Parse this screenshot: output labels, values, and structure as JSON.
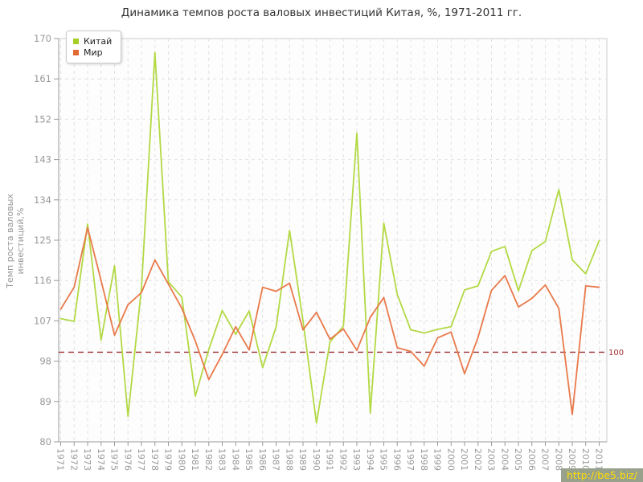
{
  "chart_data": {
    "type": "line",
    "title": "Динамика темпов роста валовых инвестиций Китая, %, 1971-2011 гг.",
    "ylabel": "Темп роста валовых инвестиций,%",
    "xlabel": "",
    "grid": true,
    "legend_position": "top-left",
    "ylim": [
      80,
      170
    ],
    "yticks": [
      80,
      89,
      98,
      107,
      116,
      125,
      134,
      143,
      152,
      161,
      170
    ],
    "x": [
      1971,
      1972,
      1973,
      1974,
      1975,
      1976,
      1977,
      1978,
      1979,
      1980,
      1981,
      1982,
      1983,
      1984,
      1985,
      1986,
      1987,
      1988,
      1989,
      1990,
      1991,
      1992,
      1993,
      1994,
      1995,
      1996,
      1997,
      1998,
      1999,
      2000,
      2001,
      2002,
      2003,
      2004,
      2005,
      2006,
      2007,
      2008,
      2009,
      2010,
      2011
    ],
    "series": [
      {
        "name": "Китай",
        "color": "#b3d944",
        "legend_color": "#a6ce27",
        "values": [
          107.5,
          106.9,
          128.6,
          102.7,
          119.3,
          85.7,
          114.3,
          166.9,
          115.7,
          112.3,
          90.2,
          100.6,
          109.3,
          104.0,
          109.2,
          96.6,
          105.6,
          127.2,
          107.0,
          84.2,
          102.3,
          105.8,
          148.9,
          86.4,
          128.8,
          112.9,
          105.0,
          104.3,
          105.1,
          105.7,
          113.9,
          114.8,
          122.5,
          123.6,
          113.7,
          122.7,
          124.7,
          136.3,
          120.6,
          117.5,
          124.9
        ]
      },
      {
        "name": "Мир",
        "color": "#e9794a",
        "legend_color": "#e26b34",
        "values": [
          109.6,
          114.5,
          127.8,
          116.0,
          103.8,
          110.6,
          113.3,
          120.6,
          115.2,
          109.8,
          102.5,
          93.9,
          99.5,
          105.7,
          100.5,
          114.5,
          113.6,
          115.4,
          105.0,
          108.9,
          102.9,
          105.2,
          100.4,
          107.8,
          112.2,
          101.0,
          100.2,
          96.9,
          103.2,
          104.5,
          95.2,
          103.3,
          113.8,
          117.1,
          110.1,
          112.0,
          115.0,
          109.8,
          86.1,
          114.8,
          114.5
        ]
      }
    ],
    "reference_line": {
      "value": 100,
      "label": "100",
      "color": "#9e3132"
    },
    "axis_colors": {
      "grid": "#e2e2e2",
      "axis": "#999999",
      "border": "#cccccc",
      "tick_text": "#999999"
    }
  },
  "watermark": {
    "text": "http://be5.biz/",
    "bg": "#98a18c",
    "color": "#ffdf00"
  }
}
